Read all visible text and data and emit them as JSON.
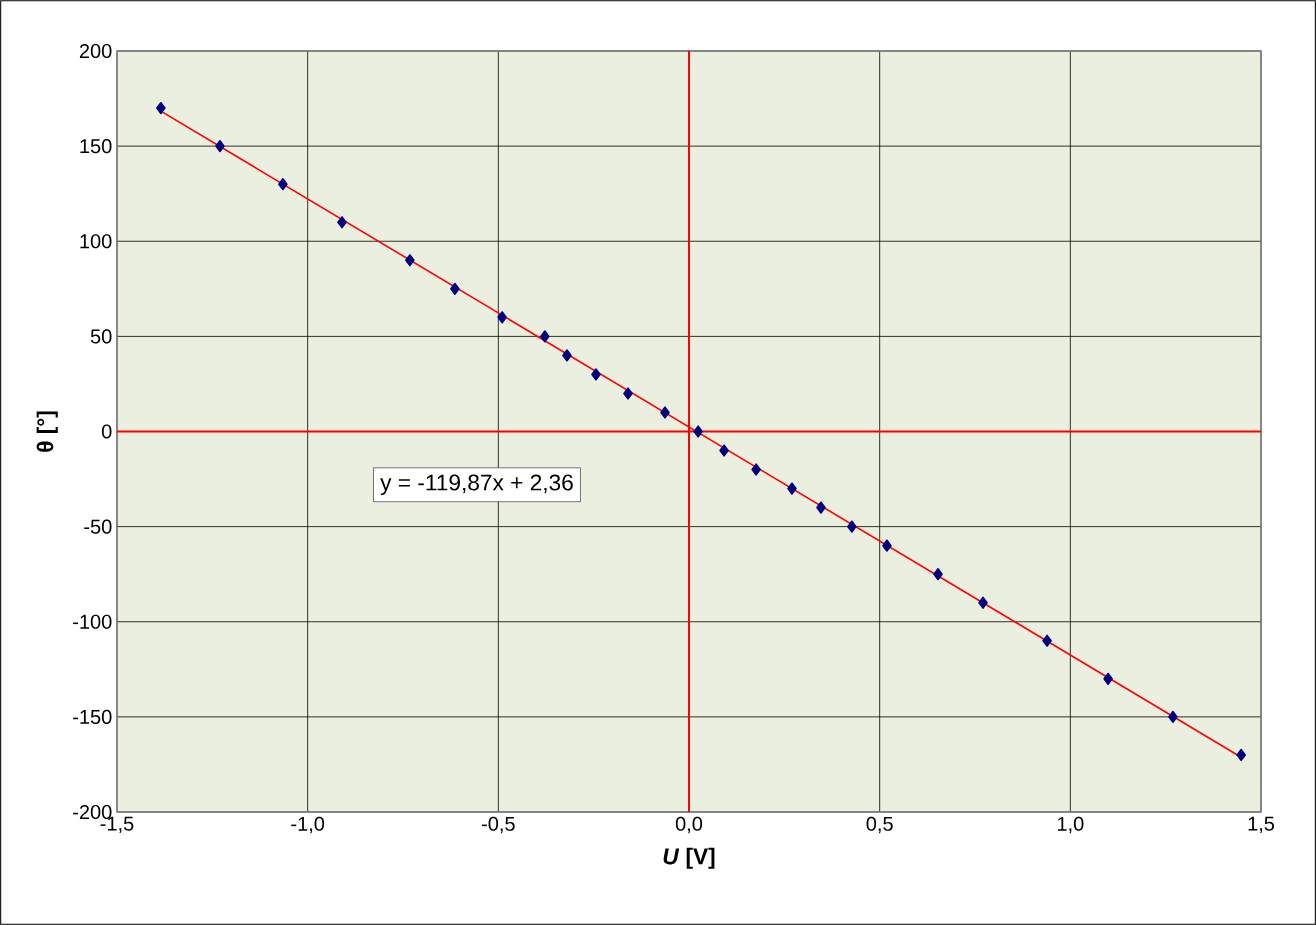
{
  "chart_data": {
    "type": "scatter",
    "xlabel": "*U*  [V]",
    "ylabel": "θ  [°]",
    "xlim": [
      -1.5,
      1.5
    ],
    "ylim": [
      -200,
      200
    ],
    "xticks": [
      {
        "value": -1.5,
        "label": "-1,5"
      },
      {
        "value": -1.0,
        "label": "-1,0"
      },
      {
        "value": -0.5,
        "label": "-0,5"
      },
      {
        "value": 0,
        "label": "0,0"
      },
      {
        "value": 0.5,
        "label": "0,5"
      },
      {
        "value": 1.0,
        "label": "1,0"
      },
      {
        "value": 1.5,
        "label": "1,5"
      }
    ],
    "yticks": [
      -200,
      -150,
      -100,
      -50,
      0,
      50,
      100,
      150,
      200
    ],
    "grid": true,
    "marker": "diamond",
    "series": [
      {
        "color": "#000080",
        "x": [
          -1.385,
          -1.23,
          -1.065,
          -0.91,
          -0.732,
          -0.614,
          -0.49,
          -0.378,
          -0.32,
          -0.244,
          -0.16,
          -0.063,
          0.024,
          0.092,
          0.176,
          0.27,
          0.346,
          0.427,
          0.519,
          0.653,
          0.771,
          0.939,
          1.099,
          1.269,
          1.448
        ],
        "values": [
          170,
          150,
          130,
          110,
          90,
          75,
          60,
          50,
          40,
          30,
          20,
          10,
          0,
          -10,
          -20,
          -30,
          -40,
          -50,
          -60,
          -75,
          -90,
          -110,
          -130,
          -150,
          -170
        ]
      },
      {
        "type": "line",
        "color": "#ff0000",
        "marker": "none",
        "x": [
          -1.385,
          1.448
        ],
        "values": [
          168.4,
          -171.2
        ]
      }
    ],
    "annotations": [
      "y = -119,87x + 2,36"
    ]
  }
}
